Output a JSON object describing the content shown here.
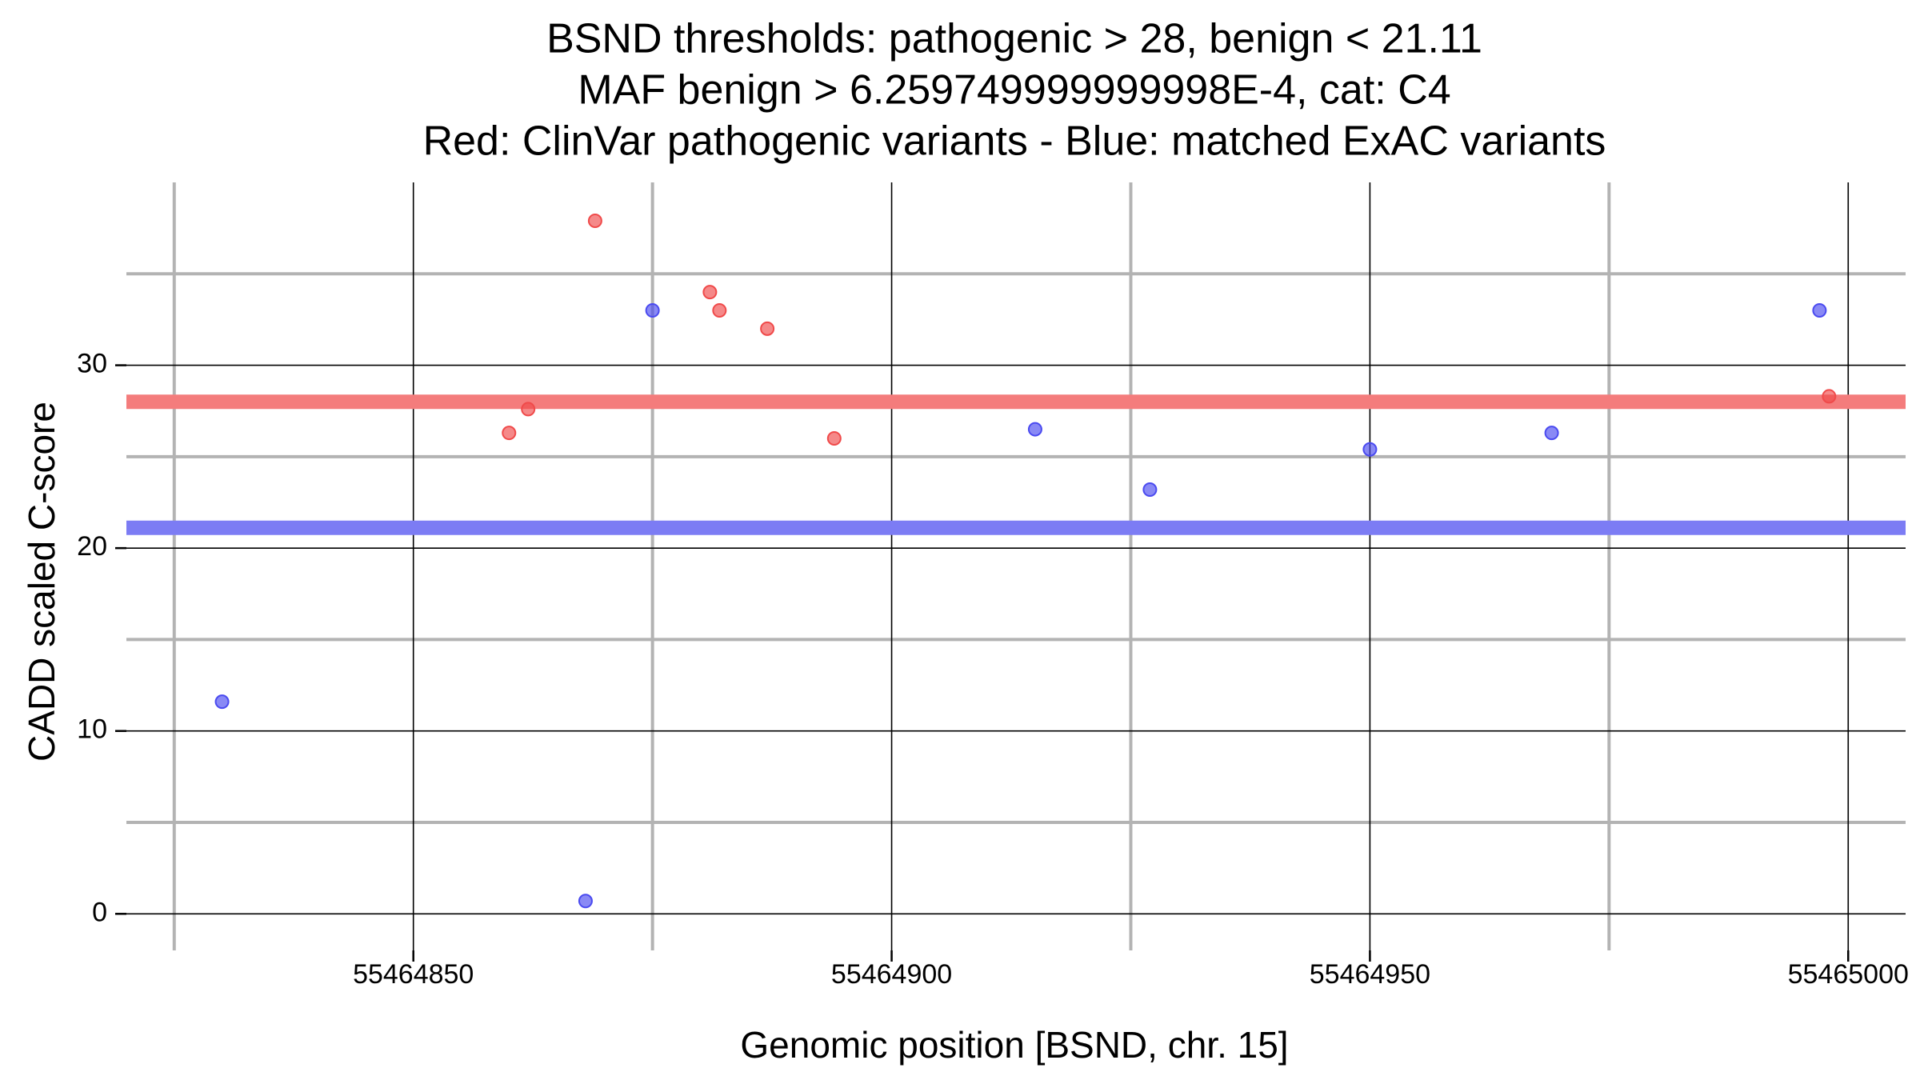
{
  "chart_data": {
    "type": "scatter",
    "title_lines": [
      "BSND thresholds: pathogenic > 28, benign < 21.11",
      "MAF benign > 6.259749999999998E-4, cat: C4",
      "Red: ClinVar pathogenic variants - Blue: matched ExAC variants"
    ],
    "xlabel": "Genomic position [BSND, chr. 15]",
    "ylabel": "CADD scaled C-score",
    "xlim": [
      55464820,
      55465006
    ],
    "ylim": [
      -2,
      40
    ],
    "x_ticks": [
      55464850,
      55464900,
      55464950,
      55465000
    ],
    "x_tick_labels": [
      "55464850",
      "55464900",
      "55464950",
      "55465000"
    ],
    "y_ticks": [
      0,
      10,
      20,
      30
    ],
    "y_tick_labels": [
      "0",
      "10",
      "20",
      "30"
    ],
    "x_minor_grid": [
      55464825,
      55464875,
      55464925,
      55464975
    ],
    "y_minor_grid": [
      5,
      15,
      25,
      35
    ],
    "grid": true,
    "thresholds": [
      {
        "name": "pathogenic",
        "value": 28,
        "color": "#f47c7c"
      },
      {
        "name": "benign",
        "value": 21.11,
        "color": "#7c7cf4"
      }
    ],
    "series": [
      {
        "color": "#f04a4a",
        "points": [
          {
            "x": 55464860,
            "y": 26.3
          },
          {
            "x": 55464862,
            "y": 27.6
          },
          {
            "x": 55464869,
            "y": 37.9
          },
          {
            "x": 55464881,
            "y": 34.0
          },
          {
            "x": 55464882,
            "y": 33.0
          },
          {
            "x": 55464887,
            "y": 32.0
          },
          {
            "x": 55464894,
            "y": 26.0
          },
          {
            "x": 55464998,
            "y": 28.3
          }
        ]
      },
      {
        "color": "#4a4af0",
        "points": [
          {
            "x": 55464830,
            "y": 11.6
          },
          {
            "x": 55464868,
            "y": 0.7
          },
          {
            "x": 55464875,
            "y": 33.0
          },
          {
            "x": 55464915,
            "y": 26.5
          },
          {
            "x": 55464927,
            "y": 23.2
          },
          {
            "x": 55464950,
            "y": 25.4
          },
          {
            "x": 55464969,
            "y": 26.3
          },
          {
            "x": 55464997,
            "y": 33.0
          }
        ]
      }
    ]
  }
}
